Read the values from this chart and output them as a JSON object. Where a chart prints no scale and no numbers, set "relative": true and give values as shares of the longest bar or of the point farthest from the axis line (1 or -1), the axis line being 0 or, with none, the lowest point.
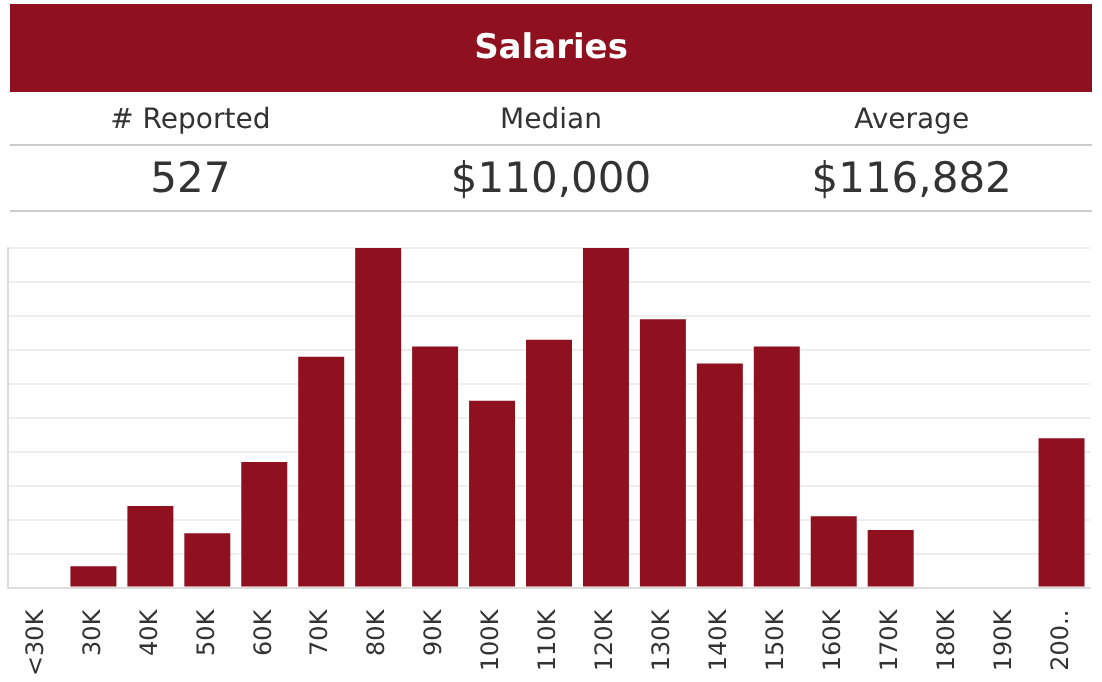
{
  "chart_data": {
    "type": "bar",
    "title": "Salaries",
    "annotations": [
      "# Reported",
      "Median",
      "Average",
      "527",
      "$110,000",
      "$116,882"
    ],
    "categories": [
      "<30K",
      "30K",
      "40K",
      "50K",
      "60K",
      "70K",
      "80K",
      "90K",
      "100K",
      "110K",
      "120K",
      "130K",
      "140K",
      "150K",
      "160K",
      "170K",
      "180K",
      "190K",
      "200.."
    ],
    "values": [
      0,
      0.063,
      0.24,
      0.16,
      0.37,
      0.68,
      1,
      0.71,
      0.55,
      0.73,
      1,
      0.79,
      0.66,
      0.71,
      0.21,
      0.17,
      0,
      0,
      0.44
    ],
    "color": "#8f111f",
    "relative": true,
    "grid": "y"
  }
}
